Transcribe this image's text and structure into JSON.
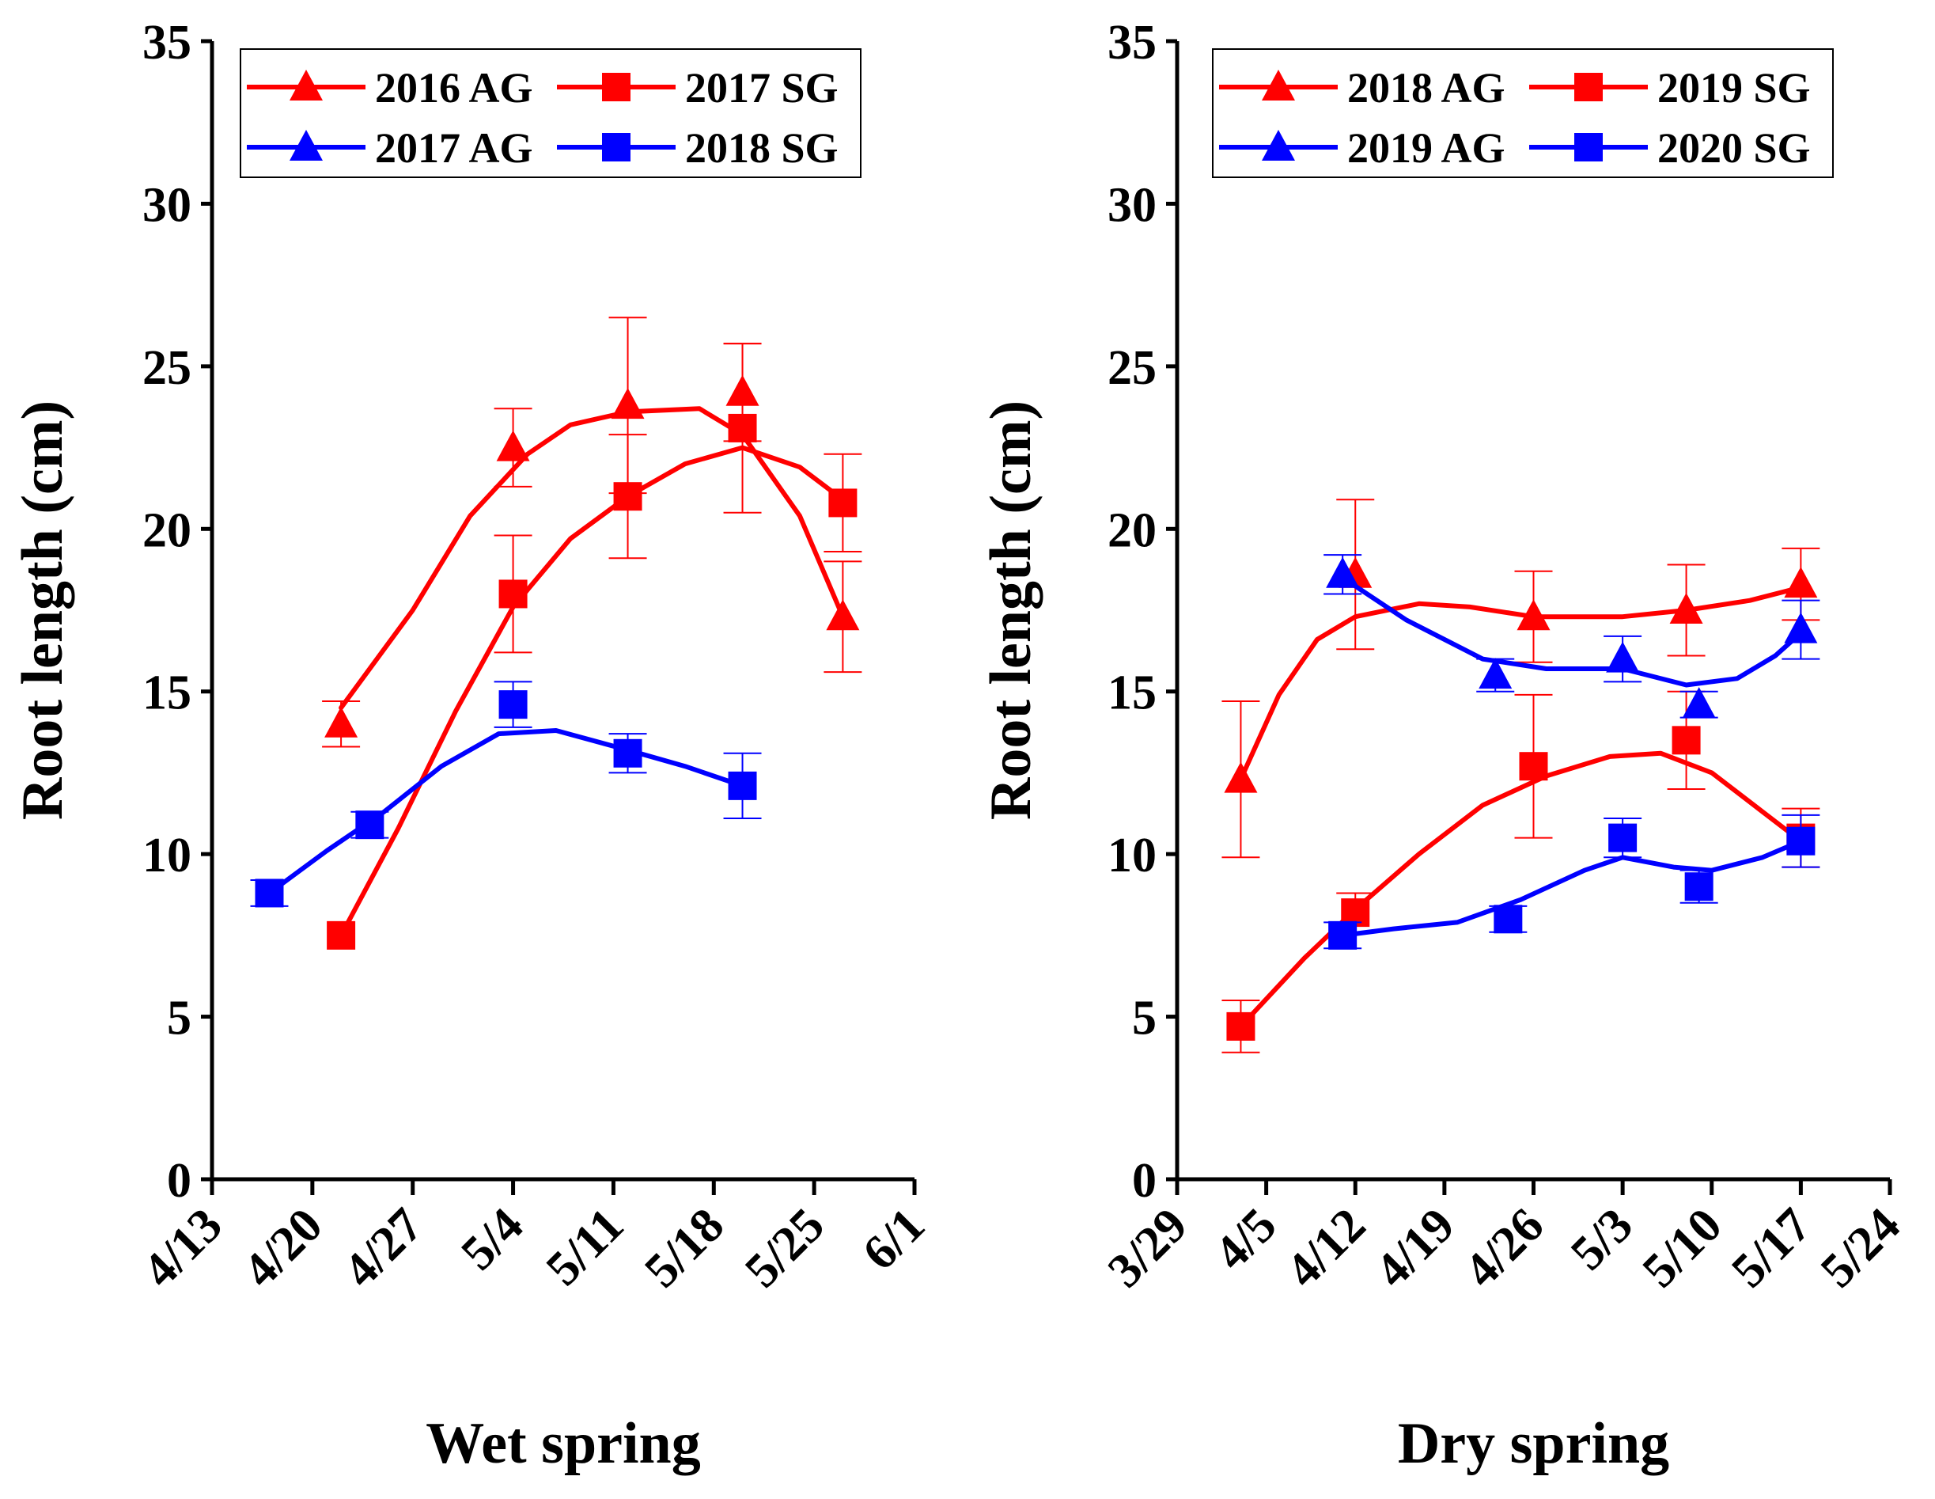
{
  "chart_data": [
    {
      "type": "line",
      "xlabel": "Wet spring",
      "ylabel": "Root length  (cm)",
      "ylim": [
        0,
        35
      ],
      "yticks": [
        "0",
        "5",
        "10",
        "15",
        "20",
        "25",
        "30",
        "35"
      ],
      "xticks": [
        "4/13",
        "4/20",
        "4/27",
        "5/4",
        "5/11",
        "5/18",
        "5/25",
        "6/1"
      ],
      "xtick_days": [
        0,
        7,
        14,
        21,
        28,
        35,
        42,
        49
      ],
      "xlim_days": [
        0,
        49
      ],
      "legend_position": "top-left",
      "series": [
        {
          "name": "2016 AG",
          "color": "#ff0000",
          "marker": "triangle",
          "points": [
            {
              "x": "4/22",
              "y": 14.0,
              "err": 0.7
            },
            {
              "x": "5/4",
              "y": 22.5,
              "err": 1.2
            },
            {
              "x": "5/12",
              "y": 23.8,
              "err": 2.7
            },
            {
              "x": "5/20",
              "y": 24.2,
              "err": 1.5
            },
            {
              "x": "5/27",
              "y": 17.3,
              "err": 1.7
            }
          ],
          "curve": [
            {
              "x": "4/22",
              "y": 14.5
            },
            {
              "x": "4/27",
              "y": 17.5
            },
            {
              "x": "5/1",
              "y": 20.4
            },
            {
              "x": "5/5",
              "y": 22.3
            },
            {
              "x": "5/8",
              "y": 23.2
            },
            {
              "x": "5/12",
              "y": 23.6
            },
            {
              "x": "5/17",
              "y": 23.7
            },
            {
              "x": "5/20",
              "y": 22.9
            },
            {
              "x": "5/24",
              "y": 20.4
            },
            {
              "x": "5/27",
              "y": 17.3
            }
          ]
        },
        {
          "name": "2017 SG",
          "color": "#ff0000",
          "marker": "square",
          "points": [
            {
              "x": "4/22",
              "y": 7.5,
              "err": 0
            },
            {
              "x": "5/4",
              "y": 18.0,
              "err": 1.8
            },
            {
              "x": "5/12",
              "y": 21.0,
              "err": 1.9
            },
            {
              "x": "5/20",
              "y": 23.1,
              "err": 2.6
            },
            {
              "x": "5/27",
              "y": 20.8,
              "err": 1.5
            }
          ],
          "curve": [
            {
              "x": "4/22",
              "y": 7.5
            },
            {
              "x": "4/26",
              "y": 10.8
            },
            {
              "x": "4/30",
              "y": 14.4
            },
            {
              "x": "5/4",
              "y": 17.6
            },
            {
              "x": "5/8",
              "y": 19.7
            },
            {
              "x": "5/12",
              "y": 21.0
            },
            {
              "x": "5/16",
              "y": 22.0
            },
            {
              "x": "5/20",
              "y": 22.5
            },
            {
              "x": "5/24",
              "y": 21.9
            },
            {
              "x": "5/27",
              "y": 20.9
            }
          ]
        },
        {
          "name": "2017 AG",
          "color": "#0000ff",
          "marker": "triangle",
          "points": []
        },
        {
          "name": "2018 SG",
          "color": "#0000ff",
          "marker": "square",
          "points": [
            {
              "x": "4/17",
              "y": 8.8,
              "err": 0.4
            },
            {
              "x": "4/24",
              "y": 10.9,
              "err": 0.4
            },
            {
              "x": "5/4",
              "y": 14.6,
              "err": 0.7
            },
            {
              "x": "5/12",
              "y": 13.1,
              "err": 0.6
            },
            {
              "x": "5/20",
              "y": 12.1,
              "err": 1.0
            }
          ],
          "curve": [
            {
              "x": "4/17",
              "y": 8.8
            },
            {
              "x": "4/21",
              "y": 10.1
            },
            {
              "x": "4/25",
              "y": 11.3
            },
            {
              "x": "4/29",
              "y": 12.7
            },
            {
              "x": "5/3",
              "y": 13.7
            },
            {
              "x": "5/7",
              "y": 13.8
            },
            {
              "x": "5/12",
              "y": 13.2
            },
            {
              "x": "5/16",
              "y": 12.7
            },
            {
              "x": "5/20",
              "y": 12.1
            }
          ]
        }
      ]
    },
    {
      "type": "line",
      "xlabel": "Dry spring",
      "ylabel": "Root length  (cm)",
      "ylim": [
        0,
        35
      ],
      "yticks": [
        "0",
        "5",
        "10",
        "15",
        "20",
        "25",
        "30",
        "35"
      ],
      "xticks": [
        "3/29",
        "4/5",
        "4/12",
        "4/19",
        "4/26",
        "5/3",
        "5/10",
        "5/17",
        "5/24"
      ],
      "xtick_days": [
        0,
        7,
        14,
        21,
        28,
        35,
        42,
        49,
        56
      ],
      "xlim_days": [
        0,
        56
      ],
      "legend_position": "top-left",
      "series": [
        {
          "name": "2018 AG",
          "color": "#ff0000",
          "marker": "triangle",
          "points": [
            {
              "x": "4/3",
              "y": 12.3,
              "err": 2.4
            },
            {
              "x": "4/12",
              "y": 18.6,
              "err": 2.3
            },
            {
              "x": "4/26",
              "y": 17.3,
              "err": 1.4
            },
            {
              "x": "5/8",
              "y": 17.5,
              "err": 1.4
            },
            {
              "x": "5/17",
              "y": 18.3,
              "err": 1.1
            }
          ],
          "curve": [
            {
              "x": "4/3",
              "y": 12.3
            },
            {
              "x": "4/6",
              "y": 14.9
            },
            {
              "x": "4/9",
              "y": 16.6
            },
            {
              "x": "4/12",
              "y": 17.3
            },
            {
              "x": "4/17",
              "y": 17.7
            },
            {
              "x": "4/21",
              "y": 17.6
            },
            {
              "x": "4/26",
              "y": 17.3
            },
            {
              "x": "5/3",
              "y": 17.3
            },
            {
              "x": "5/8",
              "y": 17.5
            },
            {
              "x": "5/13",
              "y": 17.8
            },
            {
              "x": "5/17",
              "y": 18.2
            }
          ]
        },
        {
          "name": "2019 SG",
          "color": "#ff0000",
          "marker": "square",
          "points": [
            {
              "x": "4/3",
              "y": 4.7,
              "err": 0.8
            },
            {
              "x": "4/12",
              "y": 8.2,
              "err": 0.6
            },
            {
              "x": "4/26",
              "y": 12.7,
              "err": 2.2
            },
            {
              "x": "5/8",
              "y": 13.5,
              "err": 1.5
            },
            {
              "x": "5/17",
              "y": 10.5,
              "err": 0.9
            }
          ],
          "curve": [
            {
              "x": "4/3",
              "y": 4.7
            },
            {
              "x": "4/8",
              "y": 6.8
            },
            {
              "x": "4/12",
              "y": 8.3
            },
            {
              "x": "4/17",
              "y": 10.0
            },
            {
              "x": "4/22",
              "y": 11.5
            },
            {
              "x": "4/27",
              "y": 12.4
            },
            {
              "x": "5/2",
              "y": 13.0
            },
            {
              "x": "5/6",
              "y": 13.1
            },
            {
              "x": "5/10",
              "y": 12.5
            },
            {
              "x": "5/14",
              "y": 11.3
            },
            {
              "x": "5/17",
              "y": 10.4
            }
          ]
        },
        {
          "name": "2019 AG",
          "color": "#0000ff",
          "marker": "triangle",
          "points": [
            {
              "x": "4/11",
              "y": 18.6,
              "err": 0.6
            },
            {
              "x": "4/23",
              "y": 15.5,
              "err": 0.5
            },
            {
              "x": "5/3",
              "y": 16.0,
              "err": 0.7
            },
            {
              "x": "5/9",
              "y": 14.6,
              "err": 0.4
            },
            {
              "x": "5/17",
              "y": 16.9,
              "err": 0.9
            }
          ],
          "curve": [
            {
              "x": "4/11",
              "y": 18.5
            },
            {
              "x": "4/16",
              "y": 17.2
            },
            {
              "x": "4/22",
              "y": 16.0
            },
            {
              "x": "4/27",
              "y": 15.7
            },
            {
              "x": "5/3",
              "y": 15.7
            },
            {
              "x": "5/8",
              "y": 15.2
            },
            {
              "x": "5/12",
              "y": 15.4
            },
            {
              "x": "5/15",
              "y": 16.1
            },
            {
              "x": "5/17",
              "y": 16.8
            }
          ]
        },
        {
          "name": "2020 SG",
          "color": "#0000ff",
          "marker": "square",
          "points": [
            {
              "x": "4/11",
              "y": 7.5,
              "err": 0.4
            },
            {
              "x": "4/24",
              "y": 8.0,
              "err": 0.4
            },
            {
              "x": "5/3",
              "y": 10.5,
              "err": 0.6
            },
            {
              "x": "5/9",
              "y": 9.0,
              "err": 0.5
            },
            {
              "x": "5/17",
              "y": 10.4,
              "err": 0.8
            }
          ],
          "curve": [
            {
              "x": "4/11",
              "y": 7.5
            },
            {
              "x": "4/15",
              "y": 7.7
            },
            {
              "x": "4/20",
              "y": 7.9
            },
            {
              "x": "4/25",
              "y": 8.6
            },
            {
              "x": "4/30",
              "y": 9.5
            },
            {
              "x": "5/3",
              "y": 9.9
            },
            {
              "x": "5/7",
              "y": 9.6
            },
            {
              "x": "5/10",
              "y": 9.5
            },
            {
              "x": "5/14",
              "y": 9.9
            },
            {
              "x": "5/17",
              "y": 10.4
            }
          ]
        }
      ]
    }
  ]
}
